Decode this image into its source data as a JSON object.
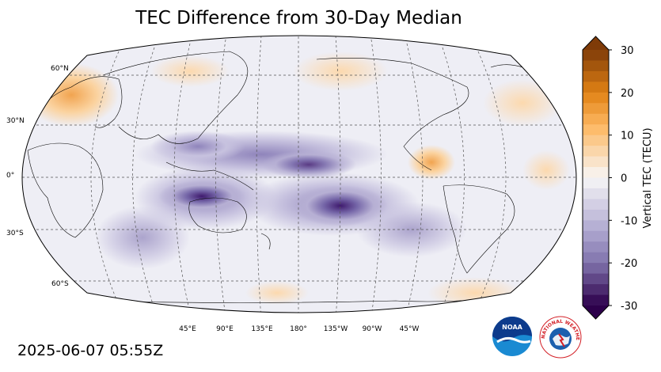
{
  "title": "TEC Difference from 30-Day Median",
  "timestamp": "2025-06-07 05:55Z",
  "map": {
    "projection": "robinson",
    "central_longitude": 180,
    "lat_labels": [
      "60°N",
      "30°N",
      "0°",
      "30°S",
      "60°S"
    ],
    "lon_labels": [
      "45°E",
      "90°E",
      "135°E",
      "180°",
      "135°W",
      "90°W",
      "45°W"
    ]
  },
  "colorbar": {
    "label": "Vertical TEC (TECU)",
    "min": -30,
    "max": 30,
    "ticks": [
      "30",
      "20",
      "10",
      "0",
      "-10",
      "-20",
      "-30"
    ],
    "colors": {
      "max": "#7f3b08",
      "positive": "#e08214",
      "light_positive": "#fdb863",
      "zero": "#f7f7f7",
      "light_negative": "#b2abd2",
      "negative": "#8073ac",
      "min": "#2d004b"
    }
  },
  "logos": {
    "noaa_text": "NOAA",
    "nws_text": "NATIONAL WEATHER SERVICE"
  }
}
